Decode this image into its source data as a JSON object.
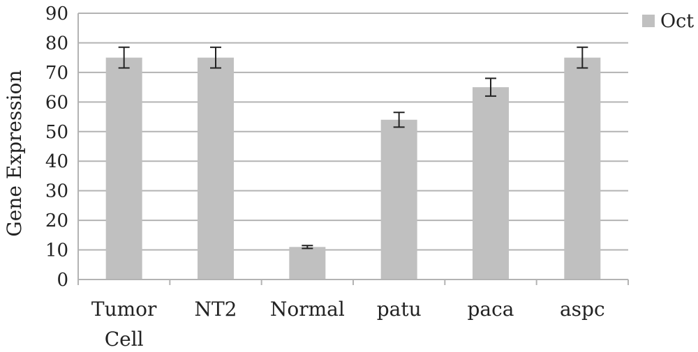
{
  "chart_data": {
    "type": "bar",
    "categories": [
      [
        "Tumor",
        "Cell"
      ],
      [
        "NT2"
      ],
      [
        "Normal"
      ],
      [
        "patu"
      ],
      [
        "paca"
      ],
      [
        "aspc"
      ]
    ],
    "series": [
      {
        "name": "Oct",
        "values": [
          75,
          75,
          11,
          54,
          65,
          75
        ],
        "error": [
          3.5,
          3.5,
          0.5,
          2.5,
          3.0,
          3.5
        ],
        "color": "#c0c0c0"
      }
    ],
    "title": "",
    "xlabel": "",
    "ylabel": "Gene Expression",
    "ylim": [
      0,
      90
    ],
    "yticks": [
      0,
      10,
      20,
      30,
      40,
      50,
      60,
      70,
      80,
      90
    ],
    "grid": true,
    "legend": "top-right"
  }
}
